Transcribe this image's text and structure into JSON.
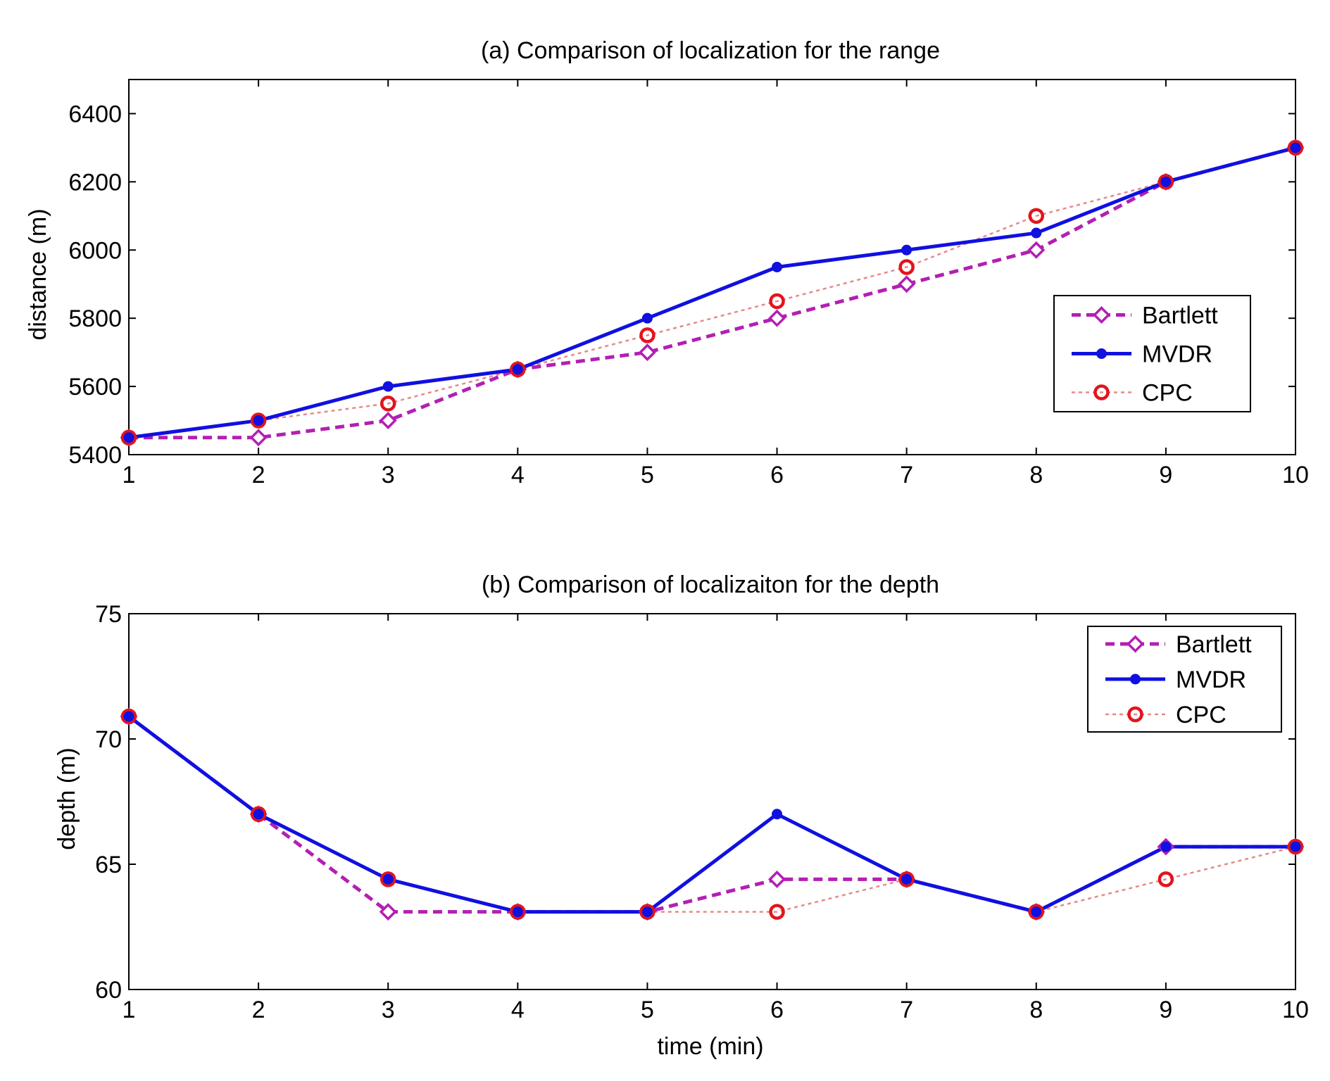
{
  "chart_data": [
    {
      "type": "line",
      "title": "(a) Comparison of localization for the range",
      "xlabel": "",
      "ylabel": "distance (m)",
      "xlim": [
        1,
        10
      ],
      "ylim": [
        5400,
        6500
      ],
      "xticks": [
        1,
        2,
        3,
        4,
        5,
        6,
        7,
        8,
        9,
        10
      ],
      "yticks": [
        5400,
        5600,
        5800,
        6000,
        6200,
        6400
      ],
      "grid": false,
      "legend_position": "center-right",
      "x": [
        1,
        2,
        3,
        4,
        5,
        6,
        7,
        8,
        9,
        10
      ],
      "series": [
        {
          "name": "Bartlett",
          "values": [
            5450,
            5450,
            5500,
            5650,
            5700,
            5800,
            5900,
            6000,
            6200,
            6300
          ],
          "color": "#b31fb3",
          "style": "dashed",
          "marker": "diamond"
        },
        {
          "name": "MVDR",
          "values": [
            5450,
            5500,
            5600,
            5650,
            5800,
            5950,
            6000,
            6050,
            6200,
            6300
          ],
          "color": "#1010e0",
          "style": "solid",
          "marker": "dot"
        },
        {
          "name": "CPC",
          "values": [
            5450,
            5500,
            5550,
            5650,
            5750,
            5850,
            5950,
            6100,
            6200,
            6300
          ],
          "color": "#e3141c",
          "style": "dotted",
          "marker": "circle"
        }
      ]
    },
    {
      "type": "line",
      "title": "(b) Comparison of localizaiton for the depth",
      "xlabel": "time (min)",
      "ylabel": "depth (m)",
      "xlim": [
        1,
        10
      ],
      "ylim": [
        60,
        75
      ],
      "xticks": [
        1,
        2,
        3,
        4,
        5,
        6,
        7,
        8,
        9,
        10
      ],
      "yticks": [
        60,
        65,
        70,
        75
      ],
      "grid": false,
      "legend_position": "top-right",
      "x": [
        1,
        2,
        3,
        4,
        5,
        6,
        7,
        8,
        9,
        10
      ],
      "series": [
        {
          "name": "Bartlett",
          "values": [
            70.9,
            67,
            63.1,
            63.1,
            63.1,
            64.4,
            64.4,
            63.1,
            65.7,
            65.7
          ],
          "color": "#b31fb3",
          "style": "dashed",
          "marker": "diamond"
        },
        {
          "name": "MVDR",
          "values": [
            70.9,
            67,
            64.4,
            63.1,
            63.1,
            67,
            64.4,
            63.1,
            65.7,
            65.7
          ],
          "color": "#1010e0",
          "style": "solid",
          "marker": "dot"
        },
        {
          "name": "CPC",
          "values": [
            70.9,
            67,
            64.4,
            63.1,
            63.1,
            63.1,
            64.4,
            63.1,
            64.4,
            65.7
          ],
          "color": "#e3141c",
          "style": "dotted",
          "marker": "circle"
        }
      ]
    }
  ]
}
